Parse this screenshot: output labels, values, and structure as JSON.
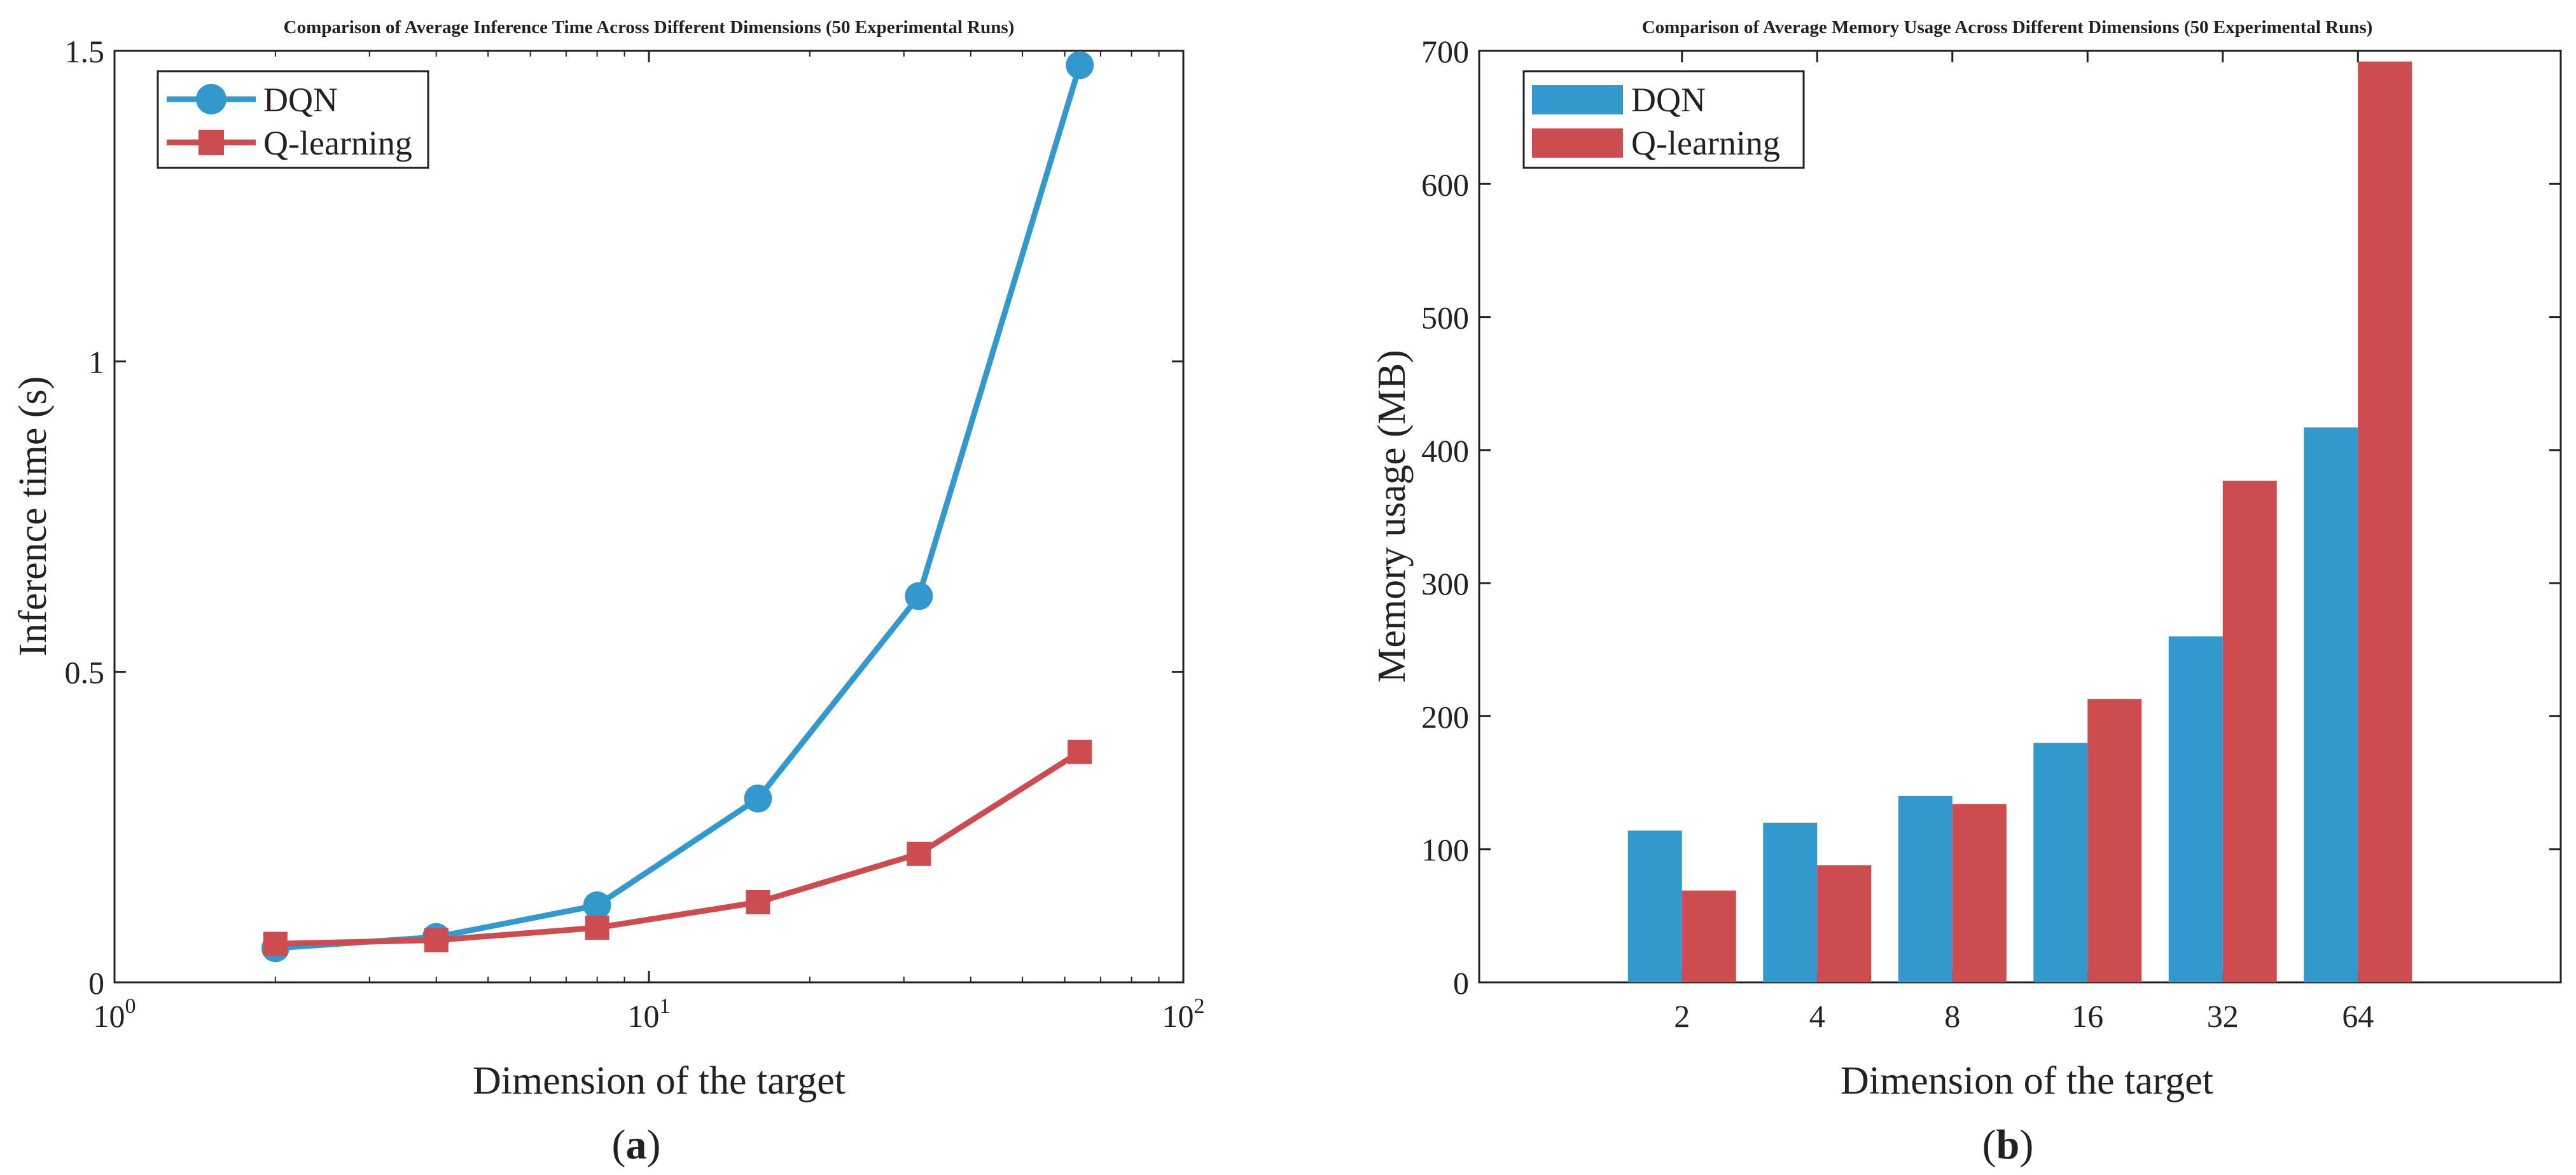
{
  "colors": {
    "dqn": "#3399CC",
    "qlearning": "#CC4C4F",
    "axis": "#222222"
  },
  "chart_data": [
    {
      "type": "line",
      "panel_label": "a",
      "title": "Comparison of Average Inference Time Across Different Dimensions (50 Experimental Runs)",
      "xlabel": "Dimension of the target",
      "ylabel": "Inference time (s)",
      "xscale": "log",
      "xlim": [
        1,
        100
      ],
      "ylim": [
        0,
        1.5
      ],
      "x": [
        2,
        4,
        8,
        16,
        32,
        64
      ],
      "x_tick_labels": [
        {
          "value": 1,
          "base": "10",
          "exp": "0"
        },
        {
          "value": 10,
          "base": "10",
          "exp": "1"
        },
        {
          "value": 100,
          "base": "10",
          "exp": "2"
        }
      ],
      "y_ticks": [
        0,
        0.5,
        1,
        1.5
      ],
      "y_tick_labels": [
        "0",
        "0.5",
        "1",
        "1.5"
      ],
      "legend_position": "top-left",
      "series": [
        {
          "name": "DQN",
          "marker": "circle",
          "values": [
            0.055,
            0.073,
            0.124,
            0.296,
            0.622,
            1.477
          ]
        },
        {
          "name": "Q-learning",
          "marker": "square",
          "values": [
            0.062,
            0.068,
            0.088,
            0.129,
            0.207,
            0.371
          ]
        }
      ]
    },
    {
      "type": "bar",
      "panel_label": "b",
      "title": "Comparison of Average Memory Usage Across Different Dimensions (50 Experimental Runs)",
      "xlabel": "Dimension of the target",
      "ylabel": "Memory usage (MB)",
      "categories": [
        "2",
        "4",
        "8",
        "16",
        "32",
        "64"
      ],
      "ylim": [
        0,
        700
      ],
      "y_ticks": [
        0,
        100,
        200,
        300,
        400,
        500,
        600,
        700
      ],
      "y_tick_labels": [
        "0",
        "100",
        "200",
        "300",
        "400",
        "500",
        "600",
        "700"
      ],
      "legend_position": "top-left",
      "series": [
        {
          "name": "DQN",
          "values": [
            114,
            120,
            140,
            180,
            260,
            417
          ]
        },
        {
          "name": "Q-learning",
          "values": [
            69,
            88,
            134,
            213,
            377,
            692
          ]
        }
      ]
    }
  ]
}
